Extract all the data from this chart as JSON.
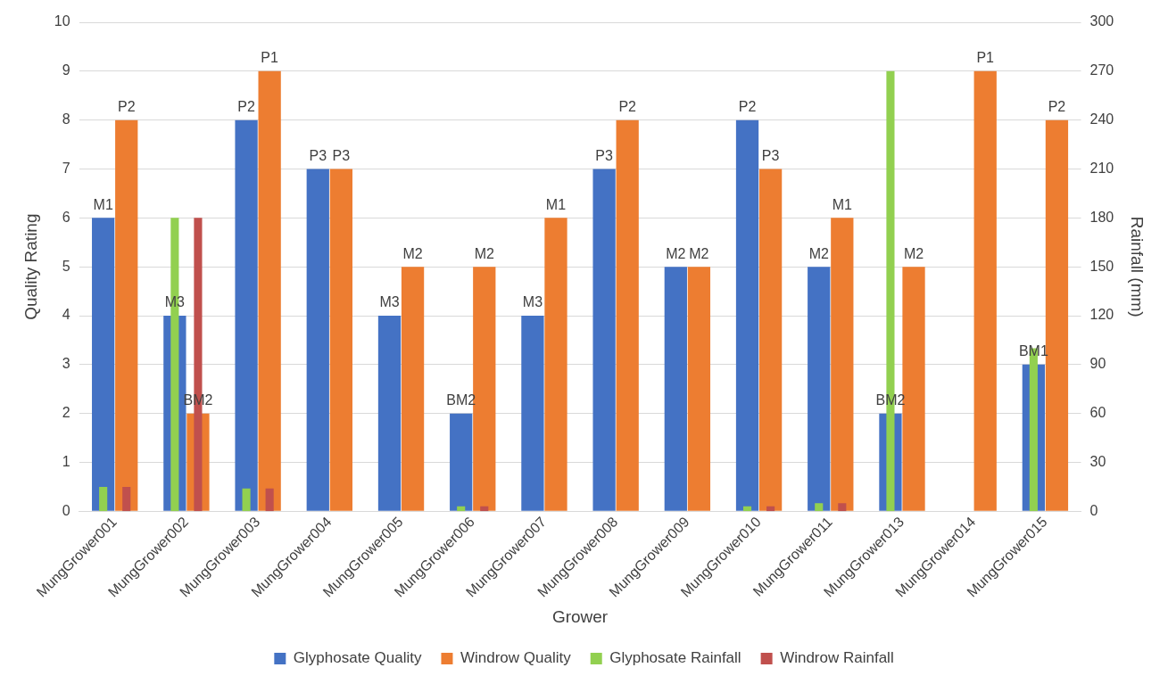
{
  "chart_data": {
    "type": "bar",
    "xlabel": "Grower",
    "ylabel": "Quality Rating",
    "y2label": "Rainfall (mm)",
    "categories": [
      "MungGrower001",
      "MungGrower002",
      "MungGrower003",
      "MungGrower004",
      "MungGrower005",
      "MungGrower006",
      "MungGrower007",
      "MungGrower008",
      "MungGrower009",
      "MungGrower010",
      "MungGrower011",
      "MungGrower013",
      "MungGrower014",
      "MungGrower015"
    ],
    "series": [
      {
        "name": "Glyphosate Quality",
        "color": "#4472c4",
        "values": [
          6,
          4,
          8,
          7,
          4,
          2,
          4,
          7,
          5,
          8,
          5,
          2,
          null,
          3
        ],
        "value_labels": [
          "M1",
          "M3",
          "P2",
          "P3",
          "M3",
          "BM2",
          "M3",
          "P3",
          "M2",
          "P2",
          "M2",
          "BM2",
          null,
          "BM1"
        ]
      },
      {
        "name": "Windrow Quality",
        "color": "#ed7d31",
        "values": [
          8,
          2,
          9,
          7,
          5,
          5,
          6,
          8,
          5,
          7,
          6,
          5,
          9,
          8
        ],
        "value_labels": [
          "P2",
          "BM2",
          "P1",
          "P3",
          "M2",
          "M2",
          "M1",
          "P2",
          "M2",
          "P3",
          "M1",
          "M2",
          "P1",
          "P2"
        ]
      },
      {
        "name": "Glyphosate Rainfall",
        "color": "#92d050",
        "axis": "y2",
        "values": [
          15,
          180,
          14,
          null,
          null,
          3,
          null,
          null,
          null,
          3,
          5,
          270,
          null,
          100
        ]
      },
      {
        "name": "Windrow Rainfall",
        "color": "#c0504d",
        "axis": "y2",
        "values": [
          15,
          180,
          14,
          null,
          null,
          3,
          null,
          null,
          null,
          3,
          5,
          null,
          null,
          null
        ]
      }
    ],
    "ylim": [
      0,
      10
    ],
    "yticks": [
      0,
      1,
      2,
      3,
      4,
      5,
      6,
      7,
      8,
      9,
      10
    ],
    "y2lim": [
      0,
      300
    ],
    "y2ticks": [
      0,
      30,
      60,
      90,
      120,
      150,
      180,
      210,
      240,
      270,
      300
    ],
    "grid": "y",
    "legend": "bottom"
  }
}
